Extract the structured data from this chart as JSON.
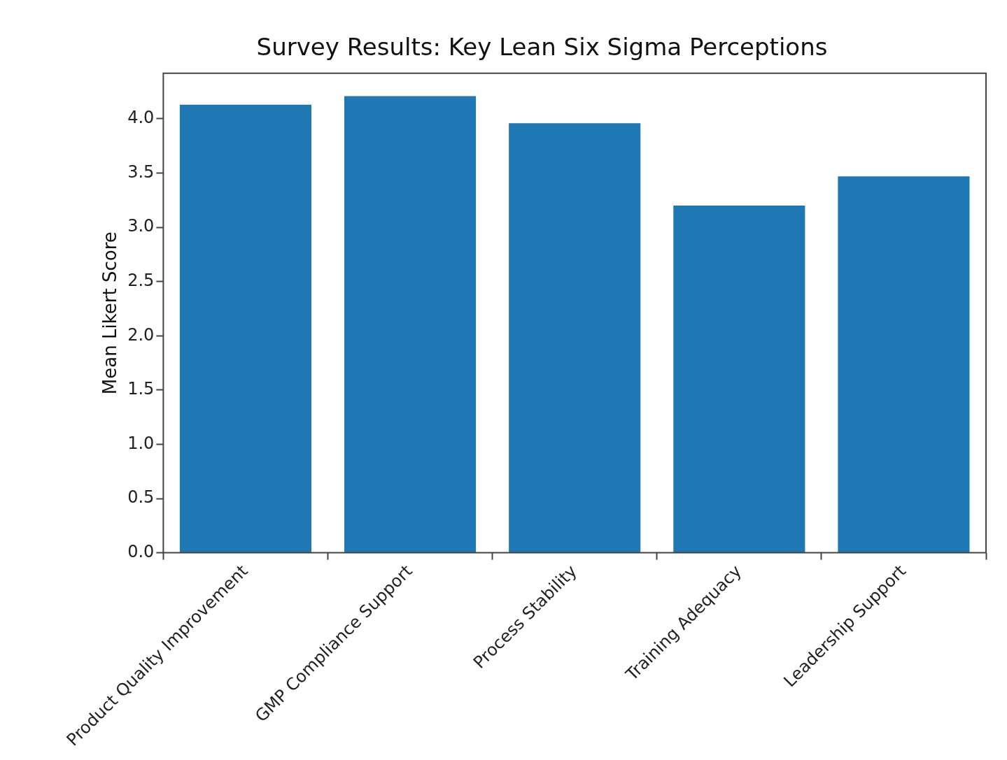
{
  "chart_data": {
    "type": "bar",
    "title": "Survey Results: Key Lean Six Sigma Perceptions",
    "ylabel": "Mean Likert Score",
    "categories": [
      "Product Quality Improvement",
      "GMP Compliance Support",
      "Process Stability",
      "Training Adequacy",
      "Leadership Support"
    ],
    "values": [
      4.13,
      4.21,
      3.96,
      3.2,
      3.47
    ],
    "color": "#1f77b4",
    "ylim": [
      0,
      4.42
    ],
    "yticks": [
      {
        "value": 0,
        "label": "0.0"
      },
      {
        "value": 0.5,
        "label": "0.5"
      },
      {
        "value": 1,
        "label": "1.0"
      },
      {
        "value": 1.5,
        "label": "1.5"
      },
      {
        "value": 2,
        "label": "2.0"
      },
      {
        "value": 2.5,
        "label": "2.5"
      },
      {
        "value": 3,
        "label": "3.0"
      },
      {
        "value": 3.5,
        "label": "3.5"
      },
      {
        "value": 4,
        "label": "4.0"
      }
    ],
    "grid": false,
    "legend": false
  }
}
